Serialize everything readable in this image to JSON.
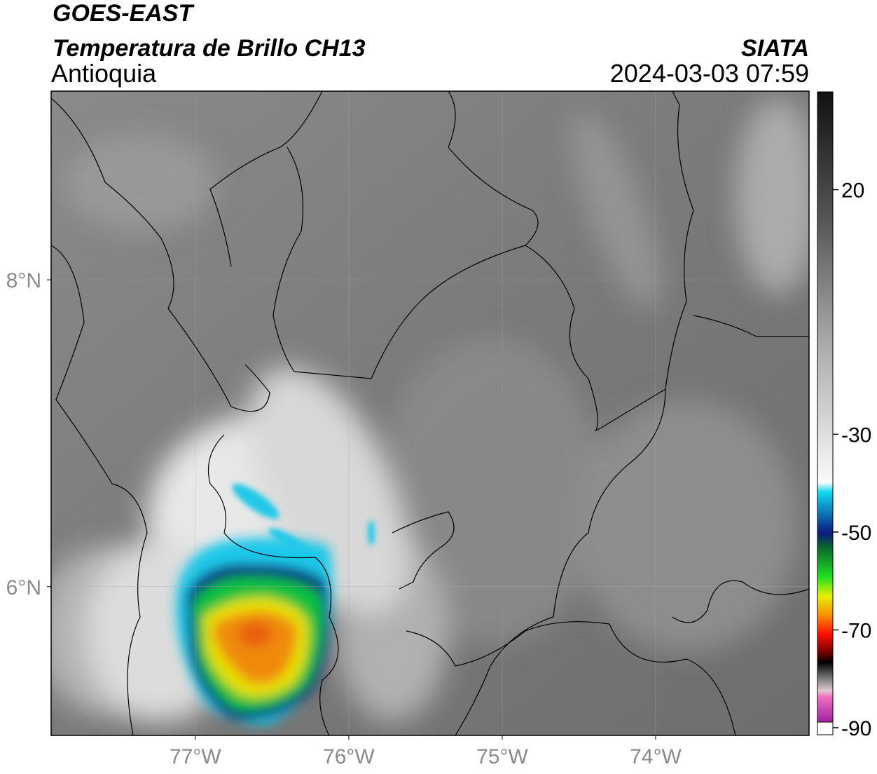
{
  "header": {
    "title": "GOES-EAST",
    "subtitle": "Temperatura de Brillo CH13",
    "region": "Antioquia",
    "source": "SIATA",
    "datetime": "2024-03-03 07:59"
  },
  "map": {
    "xlim": [
      -77.94,
      -73.0
    ],
    "ylim": [
      5.03,
      9.23
    ],
    "xticks": [
      {
        "value": -77,
        "label": "77°W"
      },
      {
        "value": -76,
        "label": "76°W"
      },
      {
        "value": -75,
        "label": "75°W"
      },
      {
        "value": -74,
        "label": "74°W"
      }
    ],
    "yticks": [
      {
        "value": 6,
        "label": "6°N"
      },
      {
        "value": 8,
        "label": "8°N"
      }
    ],
    "grid": true
  },
  "colorbar": {
    "lim": [
      -90,
      40
    ],
    "ticks": [
      20,
      -30,
      -50,
      -70,
      -90
    ]
  }
}
